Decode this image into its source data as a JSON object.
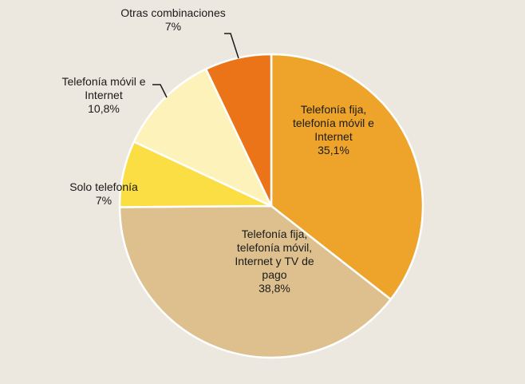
{
  "chart_data": {
    "type": "pie",
    "start_angle_deg": 0,
    "direction": "clockwise",
    "slices": [
      {
        "label_lines": [
          "Telefonía fija,",
          "telefonía móvil e",
          "Internet"
        ],
        "value_label": "35,1%",
        "value": 35.1,
        "color": "#eea42a"
      },
      {
        "label_lines": [
          "Telefonía fija,",
          "telefonía móvil,",
          "Internet y TV de",
          "pago"
        ],
        "value_label": "38,8%",
        "value": 38.8,
        "color": "#ddc08e"
      },
      {
        "label_lines": [
          "Solo telefonía"
        ],
        "value_label": "7%",
        "value": 7.0,
        "color": "#fbdd44"
      },
      {
        "label_lines": [
          "Telefonía móvil e",
          "Internet"
        ],
        "value_label": "10,8%",
        "value": 10.8,
        "color": "#fdf2b9"
      },
      {
        "label_lines": [
          "Otras combinaciones"
        ],
        "value_label": "7%",
        "value": 7.0,
        "color": "#ec7418"
      }
    ]
  }
}
